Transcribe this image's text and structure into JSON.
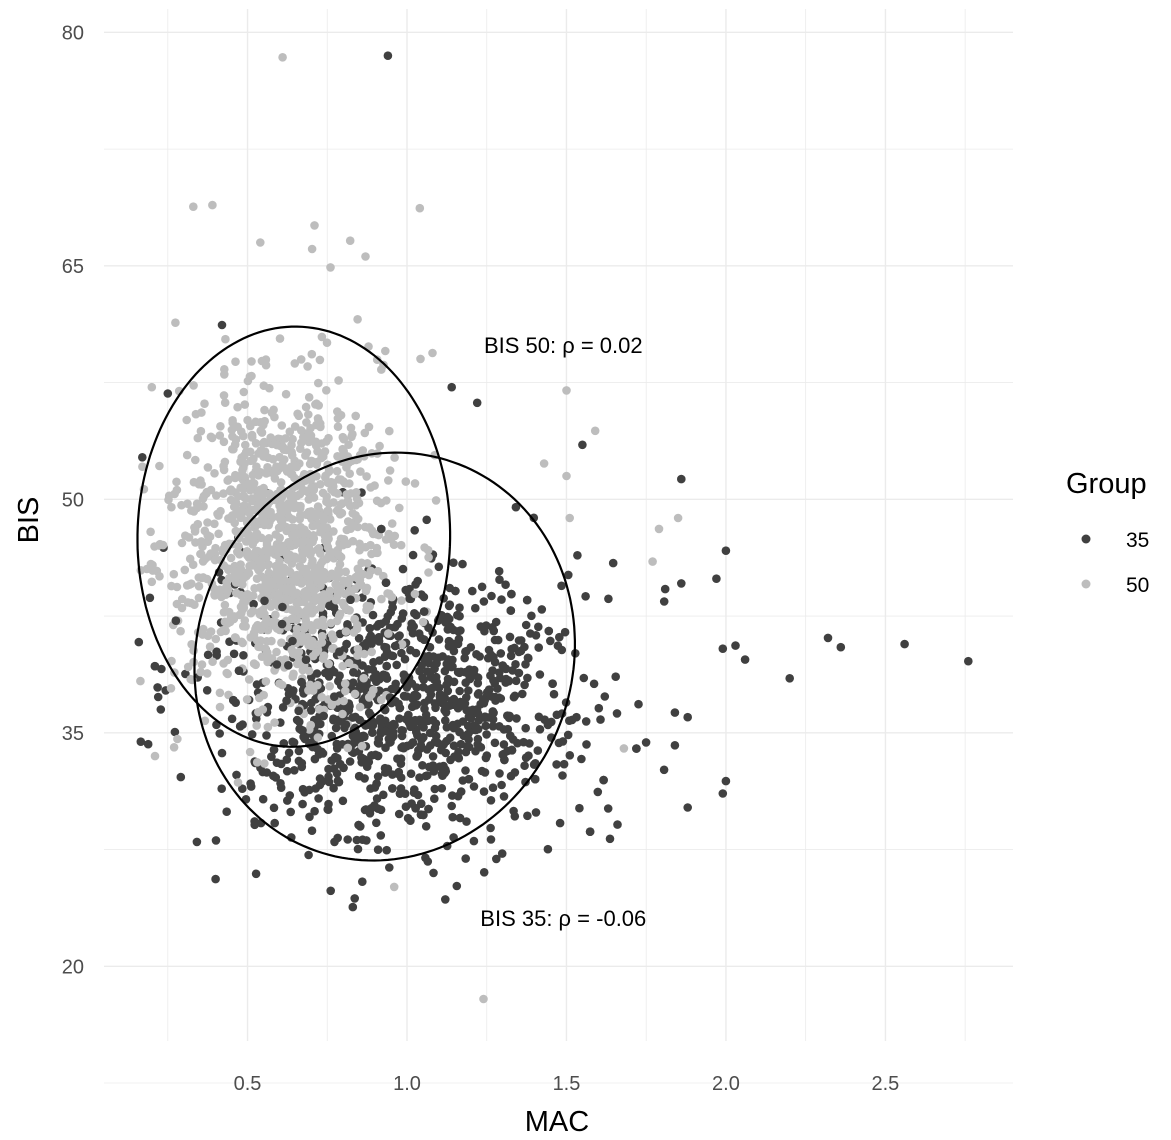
{
  "chart_data": {
    "type": "scatter",
    "title": "",
    "xlabel": "MAC",
    "ylabel": "BIS",
    "xlim": [
      0.05,
      2.9
    ],
    "ylim": [
      15.2,
      81.5
    ],
    "x_ticks": [
      0.5,
      1.0,
      1.5,
      2.0,
      2.5
    ],
    "x_tick_labels": [
      "0.5",
      "1.0",
      "1.5",
      "2.0",
      "2.5"
    ],
    "y_ticks": [
      20,
      35,
      50,
      65,
      80
    ],
    "y_tick_labels": [
      "20",
      "35",
      "50",
      "65",
      "80"
    ],
    "grid": true,
    "legend": {
      "title": "Group",
      "position": "right"
    },
    "colors": {
      "35": "#404040",
      "50": "#bdbdbd"
    },
    "series": [
      {
        "name": "35",
        "color": "#404040",
        "points": [
          [
            0.94,
            78.5
          ],
          [
            1.86,
            51.3
          ],
          [
            2.0,
            46.7
          ],
          [
            1.97,
            44.9
          ],
          [
            1.86,
            44.6
          ],
          [
            2.32,
            41.1
          ],
          [
            2.36,
            40.5
          ],
          [
            2.56,
            40.7
          ],
          [
            2.76,
            39.6
          ],
          [
            2.2,
            38.5
          ],
          [
            2.06,
            39.7
          ],
          [
            2.03,
            40.6
          ],
          [
            1.99,
            40.4
          ],
          [
            1.88,
            36.0
          ],
          [
            1.84,
            36.3
          ],
          [
            1.84,
            34.2
          ],
          [
            2.0,
            31.9
          ],
          [
            1.99,
            31.1
          ],
          [
            1.88,
            30.2
          ],
          [
            1.66,
            29.1
          ],
          [
            1.48,
            29.2
          ],
          [
            1.28,
            26.9
          ],
          [
            1.12,
            24.3
          ],
          [
            0.83,
            23.8
          ],
          [
            0.4,
            25.6
          ],
          [
            0.22,
            37.3
          ],
          [
            0.23,
            39.1
          ],
          [
            0.17,
            52.7
          ],
          [
            0.25,
            56.8
          ],
          [
            0.42,
            61.2
          ],
          [
            1.14,
            57.2
          ],
          [
            1.22,
            56.2
          ],
          [
            1.55,
            53.5
          ]
        ]
      },
      {
        "name": "50",
        "color": "#bdbdbd",
        "points": [
          [
            0.61,
            78.4
          ],
          [
            0.33,
            68.8
          ],
          [
            0.39,
            68.9
          ],
          [
            1.04,
            68.7
          ],
          [
            0.71,
            67.6
          ],
          [
            0.54,
            66.5
          ],
          [
            0.87,
            65.6
          ],
          [
            0.76,
            64.9
          ],
          [
            1.08,
            59.4
          ],
          [
            1.5,
            57.0
          ],
          [
            1.59,
            54.4
          ],
          [
            1.43,
            52.3
          ],
          [
            1.5,
            51.5
          ],
          [
            1.79,
            48.1
          ],
          [
            1.85,
            48.8
          ],
          [
            1.77,
            46.0
          ],
          [
            1.51,
            48.8
          ],
          [
            0.21,
            33.5
          ],
          [
            0.28,
            34.6
          ],
          [
            0.96,
            25.1
          ],
          [
            1.24,
            17.9
          ],
          [
            0.2,
            57.2
          ],
          [
            0.2,
            44.7
          ],
          [
            1.68,
            34.0
          ]
        ]
      }
    ],
    "clusters": [
      {
        "series": "35",
        "cx": 0.97,
        "cy": 37.2,
        "sx": 0.27,
        "sy": 4.4,
        "n": 1050
      },
      {
        "series": "50",
        "cx": 0.62,
        "cy": 47.0,
        "sx": 0.17,
        "sy": 5.0,
        "n": 1250
      }
    ],
    "ellipses": [
      {
        "series": "50",
        "cx": 0.645,
        "cy": 47.6,
        "rx": 0.49,
        "ry": 13.5,
        "angle": -0.05
      },
      {
        "series": "35",
        "cx": 0.93,
        "cy": 39.9,
        "rx": 0.6,
        "ry": 13.0,
        "angle": 0.22
      }
    ],
    "annotations": [
      {
        "text": "BIS 50: ρ = 0.02",
        "x": 1.49,
        "y": 59.9
      },
      {
        "text": "BIS 35: ρ = -0.06",
        "x": 1.49,
        "y": 23.1
      }
    ]
  }
}
